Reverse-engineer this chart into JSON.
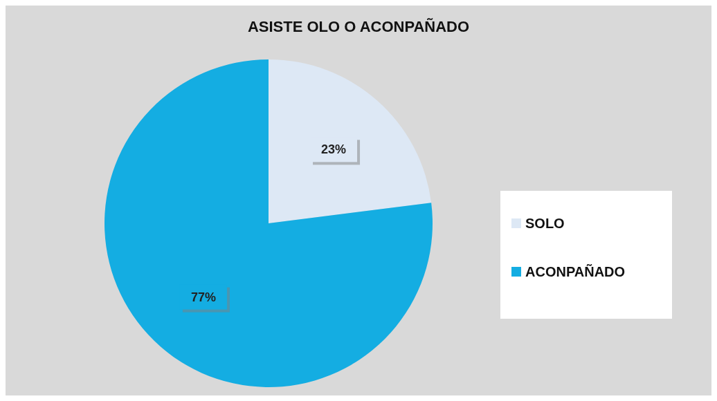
{
  "chart_data": {
    "type": "pie",
    "title": "ASISTE OLO O ACONPAÑADO",
    "categories": [
      "SOLO",
      "ACONPAÑADO"
    ],
    "values": [
      23,
      77
    ],
    "colors": [
      "#dde8f5",
      "#14ade2"
    ],
    "value_labels": [
      "23%",
      "77%"
    ],
    "legend": "right"
  }
}
